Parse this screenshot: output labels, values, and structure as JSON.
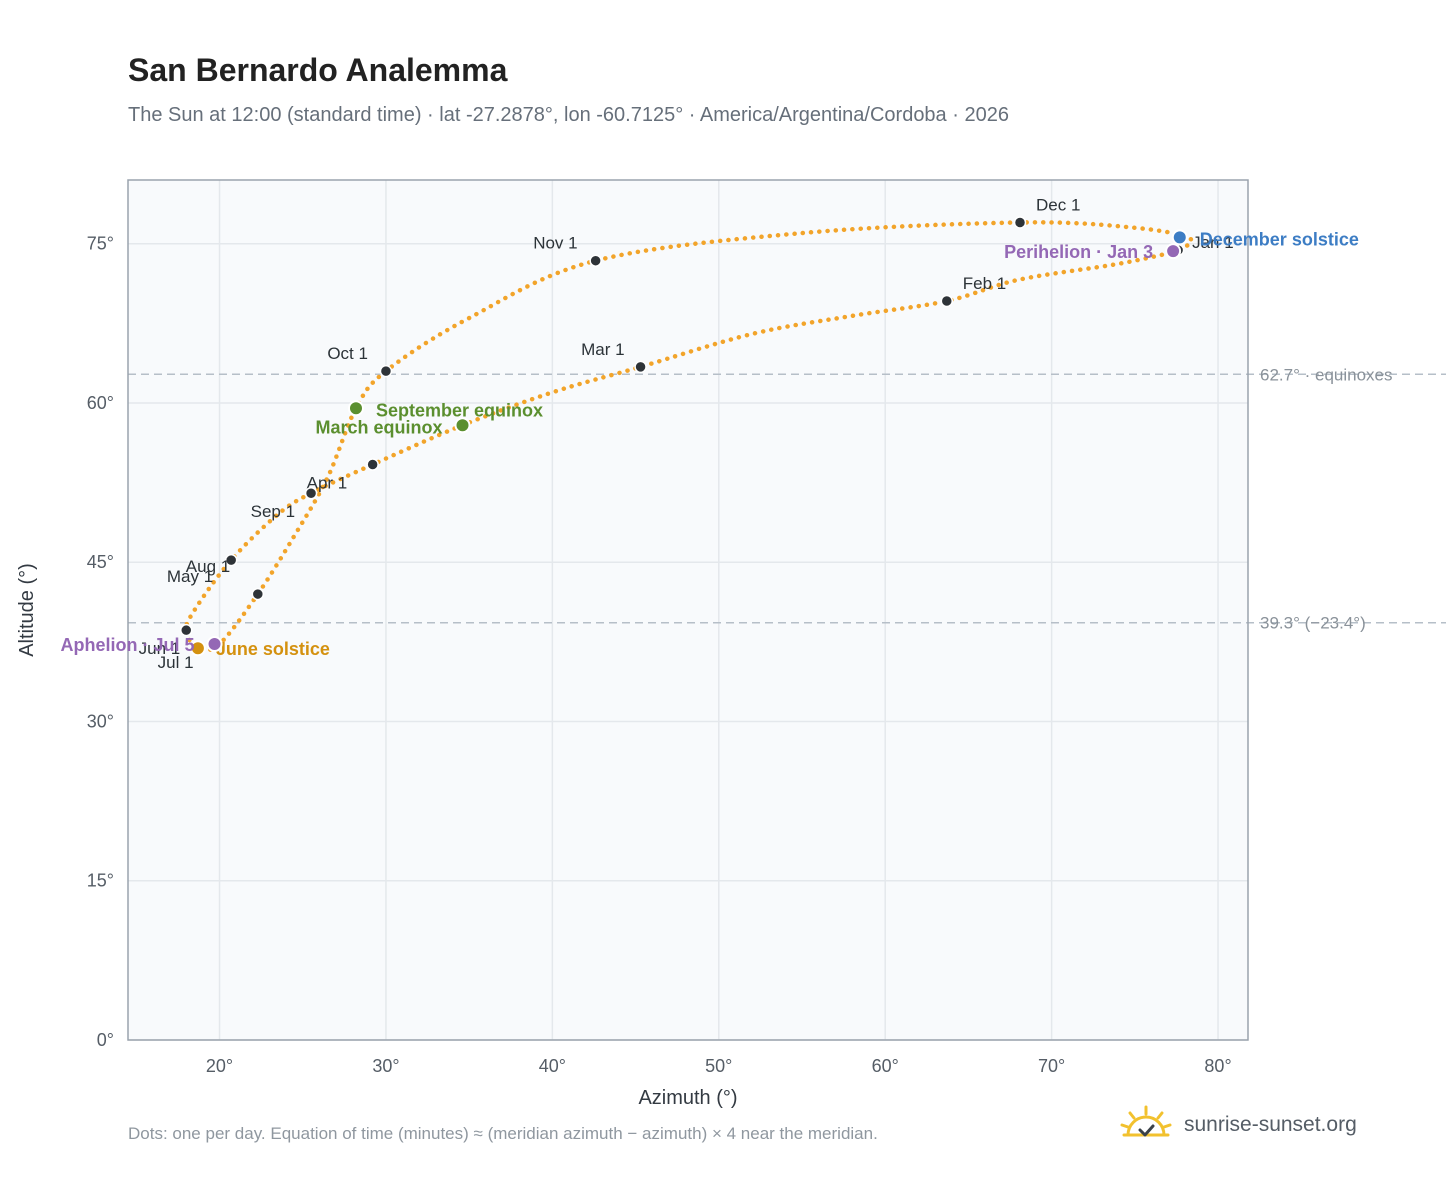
{
  "title": "San Bernardo Analemma",
  "subtitle": "The Sun at 12:00 (standard time) · lat -27.2878°, lon -60.7125° · America/Argentina/Cordoba · 2026",
  "footnote": "Dots: one per day. Equation of time (minutes) ≈ (meridian azimuth − azimuth) × 4 near the meridian.",
  "brand": {
    "name": "sunrise-sunset.org",
    "icon": "sun-logo-icon"
  },
  "colors": {
    "path": "#f2a42a",
    "month_dot": "#2e3338",
    "equinox": "#5b8f2f",
    "june_solstice": "#d4910f",
    "december_solstice": "#3d7dc4",
    "apsis": "#9468b5",
    "grid": "#e4e8ec",
    "plot_bg": "#f8fafc",
    "ref_line": "#b6bfc8"
  },
  "chart_data": {
    "type": "scatter",
    "xlabel": "Azimuth (°)",
    "ylabel": "Altitude (°)",
    "xlim": [
      14.5,
      81.8
    ],
    "ylim": [
      0,
      81
    ],
    "xticks": [
      20,
      30,
      40,
      50,
      60,
      70,
      80
    ],
    "yticks": [
      0,
      15,
      30,
      45,
      60,
      75
    ],
    "xtick_labels": [
      "20°",
      "30°",
      "40°",
      "50°",
      "60°",
      "70°",
      "80°"
    ],
    "ytick_labels": [
      "0°",
      "15°",
      "30°",
      "45°",
      "60°",
      "75°"
    ],
    "grid": true,
    "reference_lines": [
      {
        "y": 62.7,
        "label": "62.7° · equinoxes"
      },
      {
        "y": 39.3,
        "label": "39.3° (−23.4°)"
      }
    ],
    "path": [
      [
        77.6,
        74.3
      ],
      [
        74.0,
        73.1
      ],
      [
        68.0,
        71.6
      ],
      [
        63.7,
        69.6
      ],
      [
        58.0,
        68.2
      ],
      [
        52.0,
        66.5
      ],
      [
        45.3,
        63.4
      ],
      [
        40.0,
        61.0
      ],
      [
        34.6,
        57.9
      ],
      [
        29.2,
        54.2
      ],
      [
        25.5,
        51.5
      ],
      [
        23.5,
        49.5
      ],
      [
        20.7,
        45.2
      ],
      [
        18.5,
        40.5
      ],
      [
        18.0,
        38.5
      ],
      [
        18.7,
        36.9
      ],
      [
        20.0,
        37.3
      ],
      [
        22.3,
        42.0
      ],
      [
        24.5,
        47.5
      ],
      [
        26.5,
        53.0
      ],
      [
        28.2,
        59.5
      ],
      [
        30.0,
        63.0
      ],
      [
        35.0,
        68.0
      ],
      [
        42.6,
        73.4
      ],
      [
        55.0,
        76.0
      ],
      [
        68.1,
        77.0
      ],
      [
        75.0,
        76.5
      ],
      [
        78.3,
        75.5
      ],
      [
        77.6,
        74.3
      ]
    ],
    "months": [
      {
        "label": "Jan 1",
        "x": 77.6,
        "y": 74.4
      },
      {
        "label": "Feb 1",
        "x": 63.7,
        "y": 69.6
      },
      {
        "label": "Mar 1",
        "x": 45.3,
        "y": 63.4
      },
      {
        "label": "Apr 1",
        "x": 29.2,
        "y": 54.2
      },
      {
        "label": "May 1",
        "x": 20.7,
        "y": 45.2
      },
      {
        "label": "Jun 1",
        "x": 18.0,
        "y": 38.6
      },
      {
        "label": "Jul 1",
        "x": 18.8,
        "y": 36.9
      },
      {
        "label": "Aug 1",
        "x": 22.3,
        "y": 42.0
      },
      {
        "label": "Sep 1",
        "x": 25.5,
        "y": 51.5
      },
      {
        "label": "Oct 1",
        "x": 30.0,
        "y": 63.0
      },
      {
        "label": "Nov 1",
        "x": 42.6,
        "y": 73.4
      },
      {
        "label": "Dec 1",
        "x": 68.1,
        "y": 77.0
      }
    ],
    "events": [
      {
        "label": "March equinox",
        "x": 34.6,
        "y": 57.9,
        "kind": "equinox"
      },
      {
        "label": "September equinox",
        "x": 28.2,
        "y": 59.5,
        "kind": "equinox"
      },
      {
        "label": "June solstice",
        "x": 18.7,
        "y": 36.9,
        "kind": "june_solstice"
      },
      {
        "label": "December solstice",
        "x": 77.7,
        "y": 75.6,
        "kind": "december_solstice"
      },
      {
        "label": "Aphelion · Jul 5",
        "x": 19.7,
        "y": 37.3,
        "kind": "apsis"
      },
      {
        "label": "Perihelion · Jan 3",
        "x": 77.3,
        "y": 74.3,
        "kind": "apsis"
      }
    ]
  }
}
